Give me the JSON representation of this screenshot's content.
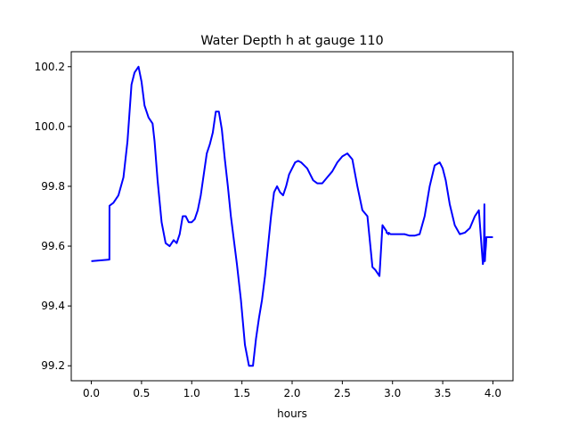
{
  "chart_data": {
    "type": "line",
    "title": "Water Depth h at gauge 110",
    "xlabel": "hours",
    "ylabel": "",
    "xlim": [
      -0.2,
      4.2
    ],
    "ylim": [
      99.15,
      100.25
    ],
    "xticks": [
      "0.0",
      "0.5",
      "1.0",
      "1.5",
      "2.0",
      "2.5",
      "3.0",
      "3.5",
      "4.0"
    ],
    "yticks": [
      "99.2",
      "99.4",
      "99.6",
      "99.8",
      "100.0",
      "100.2"
    ],
    "grid": false,
    "legend": "none",
    "colors": {
      "line": "#0000ff",
      "axes": "#000000",
      "background": "#ffffff"
    },
    "series": [
      {
        "x": [
          0.0,
          0.18,
          0.181,
          0.22,
          0.27,
          0.32,
          0.36,
          0.4,
          0.43,
          0.47,
          0.5,
          0.53,
          0.57,
          0.61,
          0.63,
          0.66,
          0.7,
          0.74,
          0.78,
          0.82,
          0.85,
          0.88,
          0.91,
          0.94,
          0.97,
          1.0,
          1.03,
          1.06,
          1.09,
          1.12,
          1.15,
          1.18,
          1.21,
          1.24,
          1.27,
          1.3,
          1.33,
          1.36,
          1.39,
          1.42,
          1.45,
          1.49,
          1.53,
          1.57,
          1.61,
          1.64,
          1.67,
          1.7,
          1.73,
          1.76,
          1.79,
          1.82,
          1.85,
          1.88,
          1.91,
          1.94,
          1.97,
          2.0,
          2.03,
          2.06,
          2.09,
          2.12,
          2.15,
          2.18,
          2.21,
          2.25,
          2.3,
          2.35,
          2.4,
          2.45,
          2.5,
          2.55,
          2.6,
          2.65,
          2.7,
          2.75,
          2.8,
          2.83,
          2.87,
          2.9,
          2.92,
          2.94,
          2.941,
          2.96,
          2.961,
          2.98,
          3.02,
          3.07,
          3.12,
          3.17,
          3.22,
          3.27,
          3.32,
          3.37,
          3.42,
          3.47,
          3.5,
          3.53,
          3.57,
          3.62,
          3.67,
          3.72,
          3.77,
          3.82,
          3.86,
          3.9,
          3.905,
          3.91,
          3.915,
          3.92,
          3.925,
          3.93,
          3.935,
          3.96,
          4.0
        ],
        "values": [
          99.55,
          99.555,
          99.735,
          99.745,
          99.77,
          99.83,
          99.95,
          100.14,
          100.18,
          100.2,
          100.15,
          100.07,
          100.03,
          100.01,
          99.95,
          99.82,
          99.68,
          99.61,
          99.6,
          99.62,
          99.61,
          99.64,
          99.7,
          99.7,
          99.68,
          99.68,
          99.69,
          99.72,
          99.77,
          99.84,
          99.91,
          99.94,
          99.98,
          100.05,
          100.05,
          99.99,
          99.89,
          99.8,
          99.7,
          99.62,
          99.54,
          99.42,
          99.27,
          99.2,
          99.2,
          99.29,
          99.36,
          99.42,
          99.5,
          99.6,
          99.7,
          99.78,
          99.8,
          99.78,
          99.77,
          99.8,
          99.84,
          99.86,
          99.88,
          99.885,
          99.88,
          99.87,
          99.86,
          99.84,
          99.82,
          99.81,
          99.81,
          99.83,
          99.85,
          99.88,
          99.9,
          99.91,
          99.89,
          99.8,
          99.72,
          99.7,
          99.53,
          99.52,
          99.5,
          99.67,
          99.66,
          99.65,
          99.645,
          99.64,
          99.645,
          99.64,
          99.64,
          99.64,
          99.64,
          99.635,
          99.635,
          99.64,
          99.7,
          99.8,
          99.87,
          99.88,
          99.86,
          99.82,
          99.74,
          99.67,
          99.64,
          99.645,
          99.66,
          99.7,
          99.72,
          99.54,
          99.55,
          99.57,
          99.74,
          99.55,
          99.58,
          99.6,
          99.63,
          99.63,
          99.63
        ]
      }
    ]
  }
}
